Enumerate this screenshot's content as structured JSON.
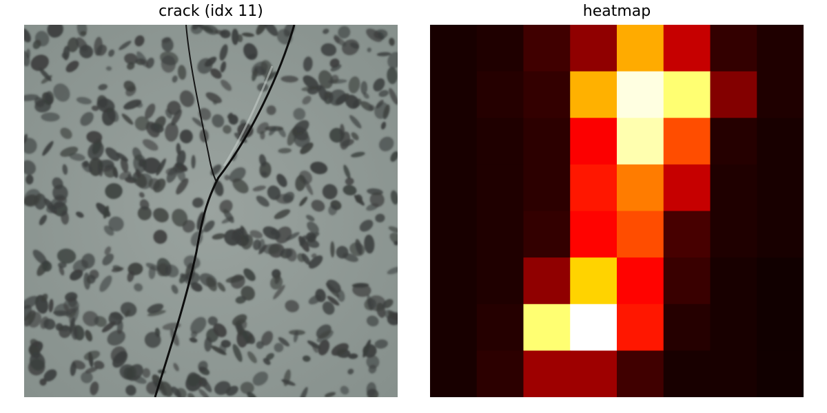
{
  "panels": {
    "left_title": "crack (idx 11)",
    "right_title": "heatmap"
  },
  "chart_data": {
    "type": "heatmap",
    "title": "heatmap",
    "colormap": "hot",
    "rows": 8,
    "cols": 8,
    "vmin": 0,
    "vmax": 1,
    "values": [
      [
        0.02,
        0.03,
        0.08,
        0.2,
        0.62,
        0.28,
        0.06,
        0.03
      ],
      [
        0.02,
        0.04,
        0.06,
        0.63,
        0.97,
        0.86,
        0.18,
        0.03
      ],
      [
        0.02,
        0.03,
        0.05,
        0.36,
        0.92,
        0.48,
        0.04,
        0.02
      ],
      [
        0.02,
        0.03,
        0.05,
        0.4,
        0.55,
        0.28,
        0.03,
        0.02
      ],
      [
        0.02,
        0.03,
        0.06,
        0.37,
        0.48,
        0.09,
        0.03,
        0.02
      ],
      [
        0.02,
        0.03,
        0.2,
        0.68,
        0.37,
        0.07,
        0.02,
        0.01
      ],
      [
        0.02,
        0.04,
        0.86,
        1.0,
        0.4,
        0.04,
        0.02,
        0.01
      ],
      [
        0.02,
        0.05,
        0.22,
        0.22,
        0.08,
        0.02,
        0.02,
        0.01
      ]
    ]
  },
  "colors": {
    "specimen_background": "#8e9894",
    "specimen_spot": "#3a3d3c",
    "crack_line": "#111111"
  }
}
